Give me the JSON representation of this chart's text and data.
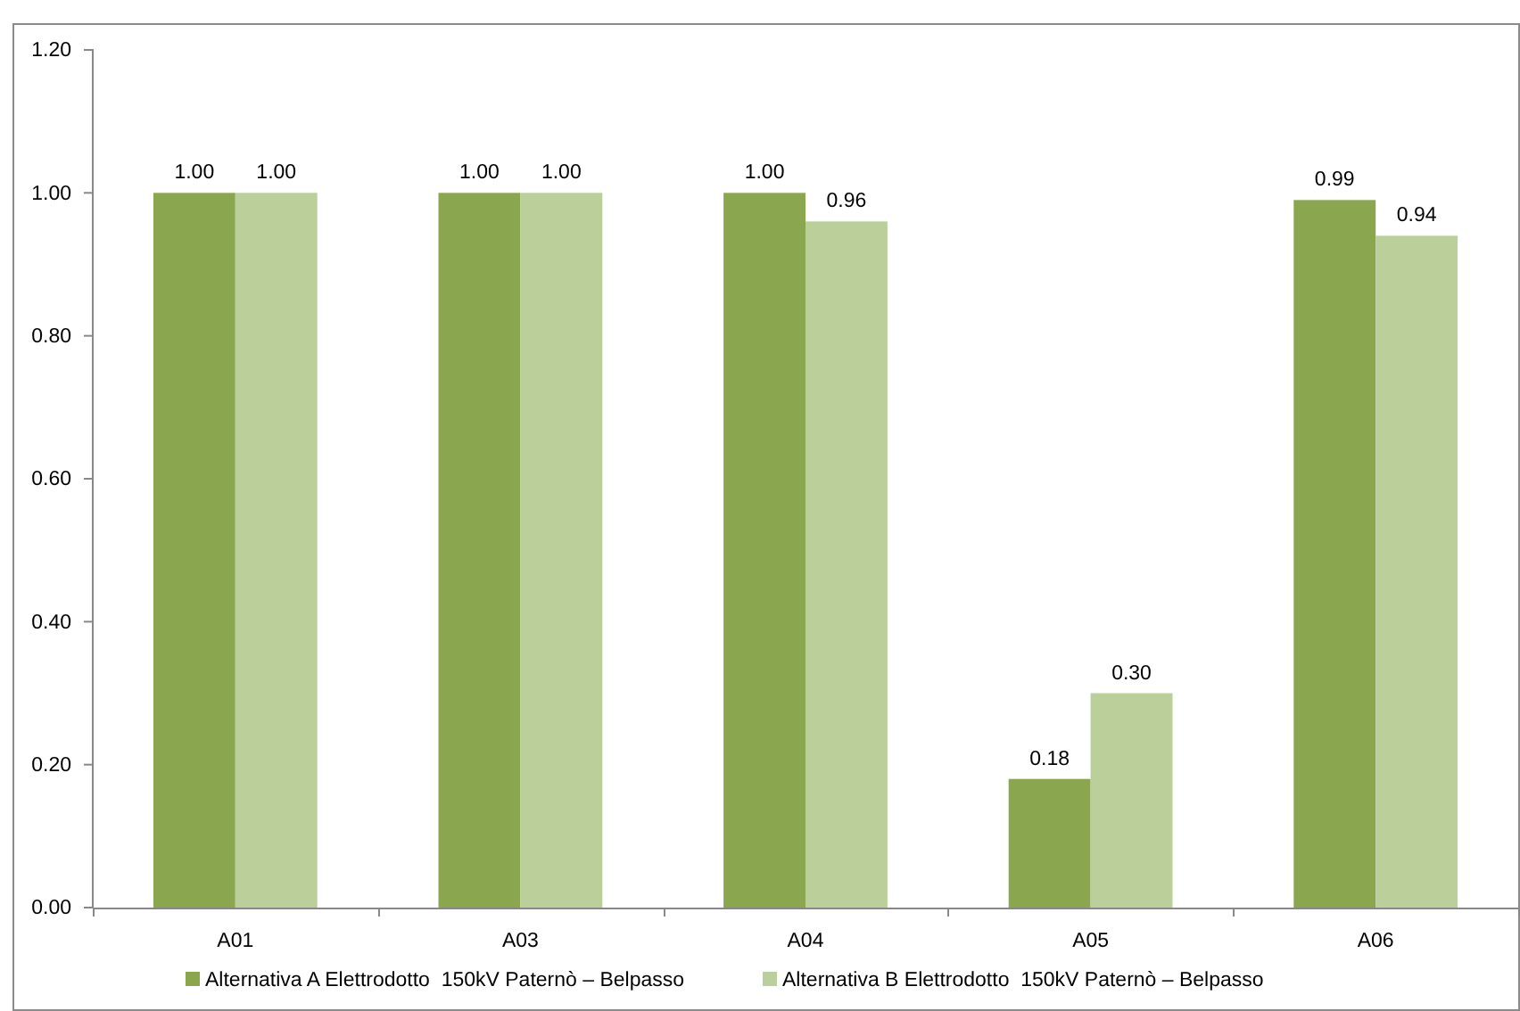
{
  "chart_data": {
    "type": "bar",
    "categories": [
      "A01",
      "A03",
      "A04",
      "A05",
      "A06"
    ],
    "series": [
      {
        "name": "Alternativa A Elettrodotto  150kV Paternò – Belpasso",
        "color": "#8aa64f",
        "values": [
          1.0,
          1.0,
          1.0,
          0.18,
          0.99
        ],
        "value_labels": [
          "1.00",
          "1.00",
          "1.00",
          "0.18",
          "0.99"
        ]
      },
      {
        "name": "Alternativa B Elettrodotto  150kV Paternò – Belpasso",
        "color": "#bacf99",
        "values": [
          1.0,
          1.0,
          0.96,
          0.3,
          0.94
        ],
        "value_labels": [
          "1.00",
          "1.00",
          "0.96",
          "0.30",
          "0.94"
        ]
      }
    ],
    "ylim": [
      0,
      1.2
    ],
    "yticks": [
      {
        "value": 0,
        "label": "0.00"
      },
      {
        "value": 0.2,
        "label": "0.20"
      },
      {
        "value": 0.4,
        "label": "0.40"
      },
      {
        "value": 0.6,
        "label": "0.60"
      },
      {
        "value": 0.8,
        "label": "0.80"
      },
      {
        "value": 1.0,
        "label": "1.00"
      },
      {
        "value": 1.2,
        "label": "1.20"
      }
    ],
    "legend": "bottom"
  }
}
